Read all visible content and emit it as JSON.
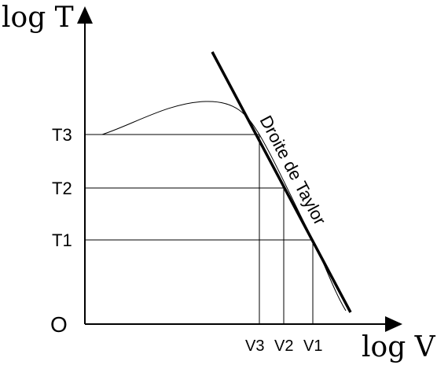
{
  "diagram": {
    "y_axis_label": "log T",
    "x_axis_label": "log V",
    "origin_label": "O",
    "y_ticks": [
      "T3",
      "T2",
      "T1"
    ],
    "x_ticks": [
      "V3",
      "V2",
      "V1"
    ],
    "line_label": "Droite de Taylor"
  }
}
